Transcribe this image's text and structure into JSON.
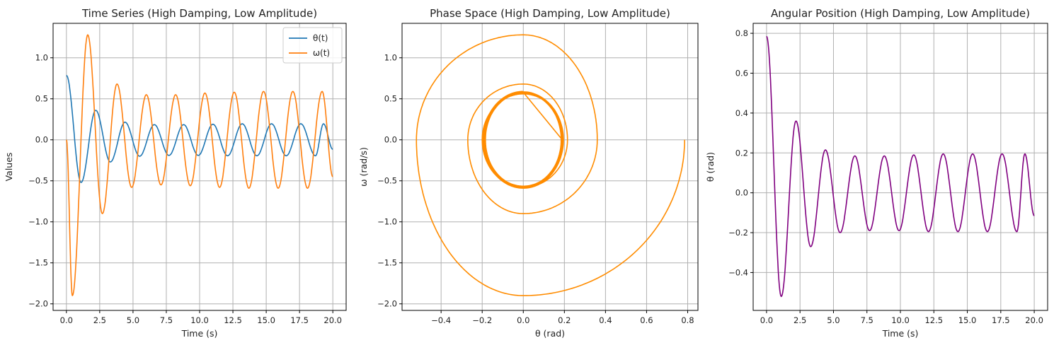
{
  "chart_data": [
    {
      "type": "line",
      "title": "Time Series (High Damping, Low Amplitude)",
      "xlabel": "Time (s)",
      "ylabel": "Values",
      "xlim": [
        -1.0,
        21.0
      ],
      "ylim": [
        -2.08,
        1.42
      ],
      "xticks": [
        0.0,
        2.5,
        5.0,
        7.5,
        10.0,
        12.5,
        15.0,
        17.5,
        20.0
      ],
      "xtick_labels": [
        "0.0",
        "2.5",
        "5.0",
        "7.5",
        "10.0",
        "12.5",
        "15.0",
        "17.5",
        "20.0"
      ],
      "yticks": [
        -2.0,
        -1.5,
        -1.0,
        -0.5,
        0.0,
        0.5,
        1.0
      ],
      "ytick_labels": [
        "−2.0",
        "−1.5",
        "−1.0",
        "−0.5",
        "0.0",
        "0.5",
        "1.0"
      ],
      "grid": true,
      "legend": "top-right",
      "series": [
        {
          "name": "θ(t)",
          "color": "#1f77b4",
          "x": [
            0,
            1.1,
            2.2,
            3.3,
            4.4,
            5.5,
            6.6,
            7.7,
            8.8,
            9.9,
            11.0,
            12.1,
            13.2,
            14.3,
            15.4,
            16.5,
            17.6,
            18.7,
            19.3,
            20.0
          ],
          "y": [
            0.785,
            -0.52,
            0.36,
            -0.27,
            0.215,
            -0.2,
            0.185,
            -0.19,
            0.185,
            -0.19,
            0.19,
            -0.195,
            0.195,
            -0.195,
            0.195,
            -0.195,
            0.195,
            -0.195,
            0.195,
            -0.115
          ]
        },
        {
          "name": "ω(t)",
          "color": "#ff7f0e",
          "x": [
            0,
            0.45,
            1.6,
            2.7,
            3.8,
            4.9,
            6.0,
            7.1,
            8.2,
            9.3,
            10.4,
            11.5,
            12.6,
            13.7,
            14.8,
            15.9,
            17.0,
            18.1,
            19.2,
            20.0
          ],
          "y": [
            0.0,
            -1.9,
            1.28,
            -0.9,
            0.68,
            -0.58,
            0.55,
            -0.55,
            0.55,
            -0.56,
            0.57,
            -0.58,
            0.58,
            -0.59,
            0.59,
            -0.59,
            0.59,
            -0.59,
            0.59,
            -0.45
          ]
        }
      ]
    },
    {
      "type": "line",
      "title": "Phase Space (High Damping, Low Amplitude)",
      "xlabel": "θ (rad)",
      "ylabel": "ω (rad/s)",
      "xlim": [
        -0.59,
        0.85
      ],
      "ylim": [
        -2.08,
        1.42
      ],
      "xticks": [
        -0.4,
        -0.2,
        0.0,
        0.2,
        0.4,
        0.6,
        0.8
      ],
      "xtick_labels": [
        "−0.4",
        "−0.2",
        "0.0",
        "0.2",
        "0.4",
        "0.6",
        "0.8"
      ],
      "yticks": [
        -2.0,
        -1.5,
        -1.0,
        -0.5,
        0.0,
        0.5,
        1.0
      ],
      "ytick_labels": [
        "−2.0",
        "−1.5",
        "−1.0",
        "−0.5",
        "0.0",
        "0.5",
        "1.0"
      ],
      "grid": true,
      "series": [
        {
          "color": "#ff8c00",
          "spiral_theta_peaks": [
            0.785,
            -0.52,
            0.36,
            -0.27,
            0.215,
            -0.2,
            0.195,
            -0.195,
            0.195,
            -0.195
          ],
          "spiral_omega_peaks": [
            -1.9,
            1.28,
            -0.9,
            0.68,
            -0.58,
            0.56,
            -0.57,
            0.58,
            -0.59,
            0.59
          ]
        }
      ]
    },
    {
      "type": "line",
      "title": "Angular Position (High Damping, Low Amplitude)",
      "xlabel": "Time (s)",
      "ylabel": "θ (rad)",
      "xlim": [
        -1.0,
        21.0
      ],
      "ylim": [
        -0.59,
        0.85
      ],
      "xticks": [
        0.0,
        2.5,
        5.0,
        7.5,
        10.0,
        12.5,
        15.0,
        17.5,
        20.0
      ],
      "xtick_labels": [
        "0.0",
        "2.5",
        "5.0",
        "7.5",
        "10.0",
        "12.5",
        "15.0",
        "17.5",
        "20.0"
      ],
      "yticks": [
        -0.4,
        -0.2,
        0.0,
        0.2,
        0.4,
        0.6,
        0.8
      ],
      "ytick_labels": [
        "−0.4",
        "−0.2",
        "0.0",
        "0.2",
        "0.4",
        "0.6",
        "0.8"
      ],
      "grid": true,
      "series": [
        {
          "color": "#800080",
          "x": [
            0,
            1.1,
            2.2,
            3.3,
            4.4,
            5.5,
            6.6,
            7.7,
            8.8,
            9.9,
            11.0,
            12.1,
            13.2,
            14.3,
            15.4,
            16.5,
            17.6,
            18.7,
            19.3,
            20.0
          ],
          "y": [
            0.785,
            -0.52,
            0.36,
            -0.27,
            0.215,
            -0.2,
            0.185,
            -0.19,
            0.185,
            -0.19,
            0.19,
            -0.195,
            0.195,
            -0.195,
            0.195,
            -0.195,
            0.195,
            -0.195,
            0.195,
            -0.115
          ]
        }
      ]
    }
  ]
}
